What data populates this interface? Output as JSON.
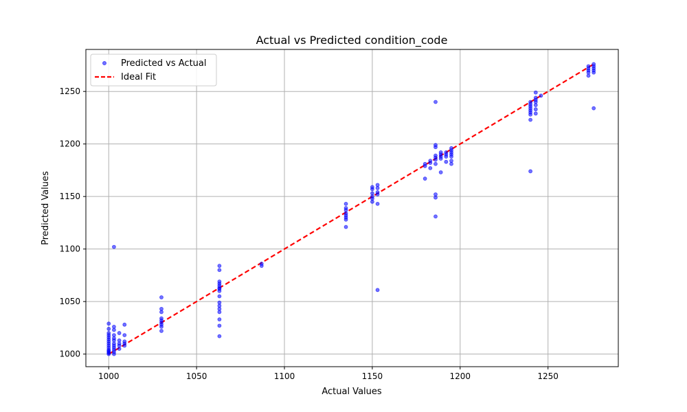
{
  "chart_data": {
    "type": "scatter",
    "title": "Actual vs Predicted condition_code",
    "xlabel": "Actual Values",
    "ylabel": "Predicted Values",
    "xlim": [
      987,
      1290
    ],
    "ylim": [
      988,
      1290
    ],
    "x_ticks": [
      1000,
      1050,
      1100,
      1150,
      1200,
      1250
    ],
    "y_ticks": [
      1000,
      1050,
      1100,
      1150,
      1200,
      1250
    ],
    "grid": true,
    "legend_position": "top-left",
    "legend": [
      "Predicted vs Actual",
      "Ideal Fit"
    ],
    "series": [
      {
        "name": "Predicted vs Actual",
        "kind": "scatter",
        "color": "#0000ff",
        "points": [
          [
            1000,
            1000
          ],
          [
            1000,
            1002
          ],
          [
            1000,
            1004
          ],
          [
            1000,
            1006
          ],
          [
            1000,
            1008
          ],
          [
            1000,
            1010
          ],
          [
            1000,
            1012
          ],
          [
            1000,
            1014
          ],
          [
            1000,
            1016
          ],
          [
            1000,
            1018
          ],
          [
            1000,
            1020
          ],
          [
            1000,
            1024
          ],
          [
            1000,
            1029
          ],
          [
            1000,
            1001
          ],
          [
            1000,
            1003
          ],
          [
            1003,
            1000
          ],
          [
            1003,
            1002
          ],
          [
            1003,
            1004
          ],
          [
            1003,
            1006
          ],
          [
            1003,
            1008
          ],
          [
            1003,
            1010
          ],
          [
            1003,
            1013
          ],
          [
            1003,
            1015
          ],
          [
            1003,
            1018
          ],
          [
            1003,
            1023
          ],
          [
            1003,
            1026
          ],
          [
            1003,
            1102
          ],
          [
            1006,
            1005
          ],
          [
            1006,
            1008
          ],
          [
            1006,
            1010
          ],
          [
            1006,
            1013
          ],
          [
            1006,
            1020
          ],
          [
            1009,
            1008
          ],
          [
            1009,
            1010
          ],
          [
            1009,
            1012
          ],
          [
            1009,
            1018
          ],
          [
            1009,
            1028
          ],
          [
            1030,
            1022
          ],
          [
            1030,
            1026
          ],
          [
            1030,
            1028
          ],
          [
            1030,
            1030
          ],
          [
            1030,
            1032
          ],
          [
            1030,
            1034
          ],
          [
            1030,
            1040
          ],
          [
            1030,
            1043
          ],
          [
            1030,
            1054
          ],
          [
            1063,
            1017
          ],
          [
            1063,
            1027
          ],
          [
            1063,
            1033
          ],
          [
            1063,
            1040
          ],
          [
            1063,
            1043
          ],
          [
            1063,
            1046
          ],
          [
            1063,
            1049
          ],
          [
            1063,
            1055
          ],
          [
            1063,
            1060
          ],
          [
            1063,
            1062
          ],
          [
            1063,
            1063
          ],
          [
            1063,
            1065
          ],
          [
            1063,
            1067
          ],
          [
            1063,
            1069
          ],
          [
            1063,
            1080
          ],
          [
            1063,
            1084
          ],
          [
            1087,
            1084
          ],
          [
            1087,
            1086
          ],
          [
            1135,
            1121
          ],
          [
            1135,
            1128
          ],
          [
            1135,
            1130
          ],
          [
            1135,
            1132
          ],
          [
            1135,
            1134
          ],
          [
            1135,
            1137
          ],
          [
            1135,
            1139
          ],
          [
            1135,
            1143
          ],
          [
            1150,
            1145
          ],
          [
            1150,
            1148
          ],
          [
            1150,
            1150
          ],
          [
            1150,
            1153
          ],
          [
            1150,
            1157
          ],
          [
            1150,
            1159
          ],
          [
            1153,
            1061
          ],
          [
            1153,
            1143
          ],
          [
            1153,
            1152
          ],
          [
            1153,
            1154
          ],
          [
            1153,
            1158
          ],
          [
            1153,
            1161
          ],
          [
            1180,
            1167
          ],
          [
            1180,
            1179
          ],
          [
            1180,
            1181
          ],
          [
            1183,
            1177
          ],
          [
            1183,
            1182
          ],
          [
            1183,
            1184
          ],
          [
            1186,
            1131
          ],
          [
            1186,
            1149
          ],
          [
            1186,
            1152
          ],
          [
            1186,
            1181
          ],
          [
            1186,
            1185
          ],
          [
            1186,
            1187
          ],
          [
            1186,
            1189
          ],
          [
            1186,
            1197
          ],
          [
            1186,
            1199
          ],
          [
            1186,
            1240
          ],
          [
            1189,
            1173
          ],
          [
            1189,
            1186
          ],
          [
            1189,
            1188
          ],
          [
            1189,
            1190
          ],
          [
            1189,
            1192
          ],
          [
            1192,
            1183
          ],
          [
            1192,
            1188
          ],
          [
            1192,
            1190
          ],
          [
            1192,
            1192
          ],
          [
            1195,
            1181
          ],
          [
            1195,
            1184
          ],
          [
            1195,
            1188
          ],
          [
            1195,
            1190
          ],
          [
            1195,
            1192
          ],
          [
            1195,
            1194
          ],
          [
            1195,
            1196
          ],
          [
            1240,
            1174
          ],
          [
            1240,
            1223
          ],
          [
            1240,
            1228
          ],
          [
            1240,
            1230
          ],
          [
            1240,
            1232
          ],
          [
            1240,
            1234
          ],
          [
            1240,
            1236
          ],
          [
            1240,
            1238
          ],
          [
            1240,
            1240
          ],
          [
            1243,
            1229
          ],
          [
            1243,
            1233
          ],
          [
            1243,
            1237
          ],
          [
            1243,
            1240
          ],
          [
            1243,
            1242
          ],
          [
            1243,
            1244
          ],
          [
            1243,
            1249
          ],
          [
            1246,
            1246
          ],
          [
            1273,
            1265
          ],
          [
            1273,
            1268
          ],
          [
            1273,
            1270
          ],
          [
            1273,
            1272
          ],
          [
            1273,
            1274
          ],
          [
            1276,
            1234
          ],
          [
            1276,
            1268
          ],
          [
            1276,
            1270
          ],
          [
            1276,
            1272
          ],
          [
            1276,
            1274
          ],
          [
            1276,
            1276
          ]
        ]
      },
      {
        "name": "Ideal Fit",
        "kind": "line",
        "color": "#ff0000",
        "x": [
          1000,
          1276
        ],
        "y": [
          1000,
          1276
        ]
      }
    ]
  }
}
